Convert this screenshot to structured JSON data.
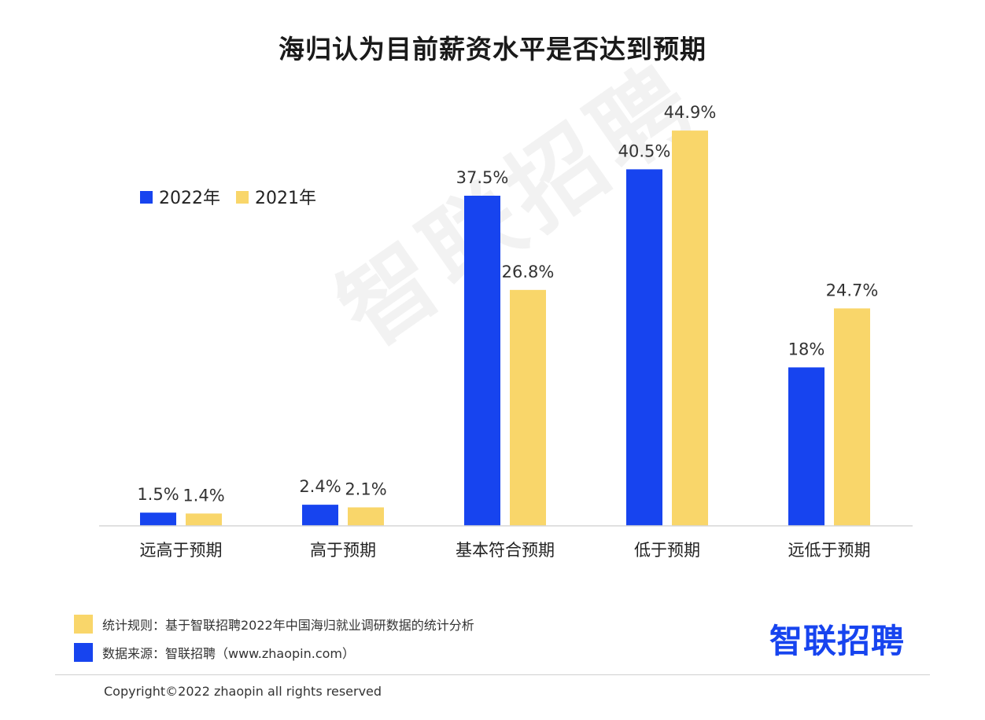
{
  "title": "海归认为目前薪资水平是否达到预期",
  "watermark_text": "智联招聘",
  "chart_data": {
    "type": "bar",
    "title": "海归认为目前薪资水平是否达到预期",
    "categories": [
      "远高于预期",
      "高于预期",
      "基本符合预期",
      "低于预期",
      "远低于预期"
    ],
    "series": [
      {
        "name": "2022年",
        "color": "#1744ef",
        "values": [
          1.5,
          2.4,
          37.5,
          40.5,
          18
        ],
        "labels": [
          "1.5%",
          "2.4%",
          "37.5%",
          "40.5%",
          "18%"
        ]
      },
      {
        "name": "2021年",
        "color": "#f9d66a",
        "values": [
          1.4,
          2.1,
          26.8,
          44.9,
          24.7
        ],
        "labels": [
          "1.4%",
          "2.1%",
          "26.8%",
          "44.9%",
          "24.7%"
        ]
      }
    ],
    "ylim": [
      0,
      50
    ],
    "xlabel": "",
    "ylabel": "",
    "grid": false,
    "legend_position": "top-left"
  },
  "notes": [
    {
      "text": "统计规则：基于智联招聘2022年中国海归就业调研数据的统计分析",
      "swatch_color": "#f9d66a"
    },
    {
      "text": "数据来源：智联招聘（www.zhaopin.com）",
      "swatch_color": "#1744ef"
    }
  ],
  "brand": "智联招聘",
  "copyright": "Copyright©2022 zhaopin all rights reserved"
}
